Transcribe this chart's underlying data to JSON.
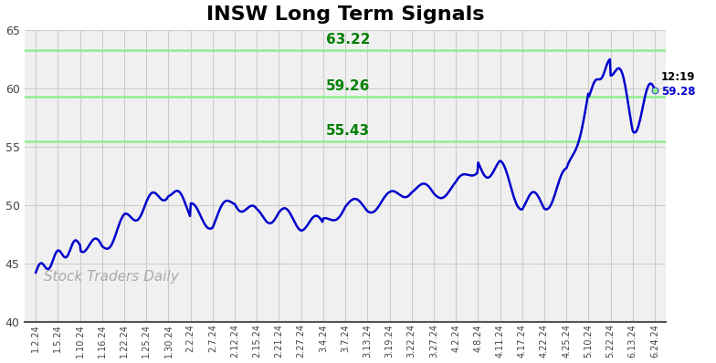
{
  "title": "INSW Long Term Signals",
  "title_fontsize": 16,
  "title_fontweight": "bold",
  "background_color": "#ffffff",
  "plot_bg_color": "#f0f0f0",
  "line_color": "#0000cc",
  "line_width": 1.8,
  "horizontal_lines": [
    {
      "y": 63.22,
      "color": "#90EE90",
      "label": "63.22"
    },
    {
      "y": 59.26,
      "color": "#90EE90",
      "label": "59.26"
    },
    {
      "y": 55.43,
      "color": "#90EE90",
      "label": "55.43"
    }
  ],
  "hline_label_fontsize": 11,
  "hline_label_color": "#008000",
  "ylim": [
    40,
    65
  ],
  "yticks": [
    40,
    45,
    50,
    55,
    60,
    65
  ],
  "watermark": "Stock Traders Daily",
  "watermark_color": "#aaaaaa",
  "watermark_fontsize": 11,
  "annotation_time": "12:19",
  "annotation_price": "59.28",
  "annotation_price_color": "#0000cc",
  "grid_color": "#cccccc",
  "xtick_labels": [
    "1.2.24",
    "1.5.24",
    "1.10.24",
    "1.16.24",
    "1.22.24",
    "1.25.24",
    "1.30.24",
    "2.2.24",
    "2.7.24",
    "2.12.24",
    "2.15.24",
    "2.21.24",
    "2.27.24",
    "3.4.24",
    "3.7.24",
    "3.13.24",
    "3.19.24",
    "3.22.24",
    "3.27.24",
    "4.2.24",
    "4.8.24",
    "4.11.24",
    "4.17.24",
    "4.22.24",
    "4.25.24",
    "5.10.24",
    "5.22.24",
    "6.13.24",
    "6.24.24"
  ],
  "key_prices_x": [
    0,
    1,
    2,
    3,
    4,
    5,
    6,
    7,
    8,
    9,
    10,
    11,
    12,
    13,
    14,
    15,
    16,
    17,
    18,
    19,
    20,
    21,
    22,
    23,
    24,
    25,
    26,
    27,
    28
  ],
  "key_prices_y": [
    44.2,
    45.6,
    46.7,
    46.3,
    48.5,
    50.0,
    51.3,
    49.5,
    48.5,
    50.5,
    49.0,
    49.2,
    48.5,
    48.3,
    50.0,
    49.8,
    50.5,
    51.5,
    51.0,
    51.5,
    53.4,
    53.0,
    50.2,
    50.2,
    52.3,
    59.5,
    62.3,
    57.5,
    59.28
  ]
}
